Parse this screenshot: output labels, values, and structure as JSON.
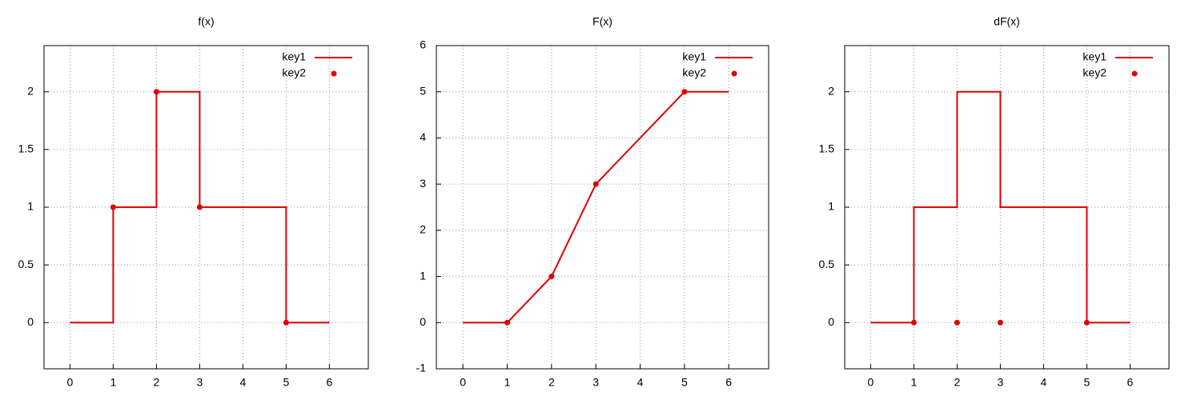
{
  "chart_data": [
    {
      "type": "line",
      "title": "f(x)",
      "xlim": [
        -0.6,
        6.9
      ],
      "ylim": [
        -0.4,
        2.4
      ],
      "xticks": [
        0,
        1,
        2,
        3,
        4,
        5,
        6
      ],
      "yticks": [
        0,
        0.5,
        1,
        1.5,
        2
      ],
      "grid": true,
      "legend": "top-right",
      "series": [
        {
          "name": "key1",
          "color": "#e00000",
          "style": "line",
          "x": [
            0,
            1,
            1,
            2,
            2,
            3,
            3,
            5,
            5,
            6
          ],
          "values": [
            0,
            0,
            1,
            1,
            2,
            2,
            1,
            1,
            0,
            0
          ]
        },
        {
          "name": "key2",
          "color": "#e00000",
          "style": "points",
          "x": [
            1,
            2,
            3,
            5
          ],
          "values": [
            1,
            2,
            1,
            0
          ]
        }
      ]
    },
    {
      "type": "line",
      "title": "F(x)",
      "xlim": [
        -0.6,
        6.9
      ],
      "ylim": [
        -1,
        6
      ],
      "xticks": [
        0,
        1,
        2,
        3,
        4,
        5,
        6
      ],
      "yticks": [
        -1,
        0,
        1,
        2,
        3,
        4,
        5,
        6
      ],
      "grid": true,
      "legend": "top-right",
      "series": [
        {
          "name": "key1",
          "color": "#e00000",
          "style": "line",
          "x": [
            0,
            1,
            2,
            3,
            5,
            6
          ],
          "values": [
            0,
            0,
            1,
            3,
            5,
            5
          ]
        },
        {
          "name": "key2",
          "color": "#e00000",
          "style": "points",
          "x": [
            1,
            2,
            3,
            5
          ],
          "values": [
            0,
            1,
            3,
            5
          ]
        }
      ]
    },
    {
      "type": "line",
      "title": "dF(x)",
      "xlim": [
        -0.6,
        6.9
      ],
      "ylim": [
        -0.4,
        2.4
      ],
      "xticks": [
        0,
        1,
        2,
        3,
        4,
        5,
        6
      ],
      "yticks": [
        0,
        0.5,
        1,
        1.5,
        2
      ],
      "grid": true,
      "legend": "top-right",
      "series": [
        {
          "name": "key1",
          "color": "#e00000",
          "style": "line",
          "x": [
            0,
            1,
            1,
            2,
            2,
            3,
            3,
            5,
            5,
            6
          ],
          "values": [
            0,
            0,
            1,
            1,
            2,
            2,
            1,
            1,
            0,
            0
          ]
        },
        {
          "name": "key2",
          "color": "#e00000",
          "style": "points",
          "x": [
            1,
            2,
            3,
            5
          ],
          "values": [
            0,
            0,
            0,
            0
          ]
        }
      ]
    }
  ]
}
